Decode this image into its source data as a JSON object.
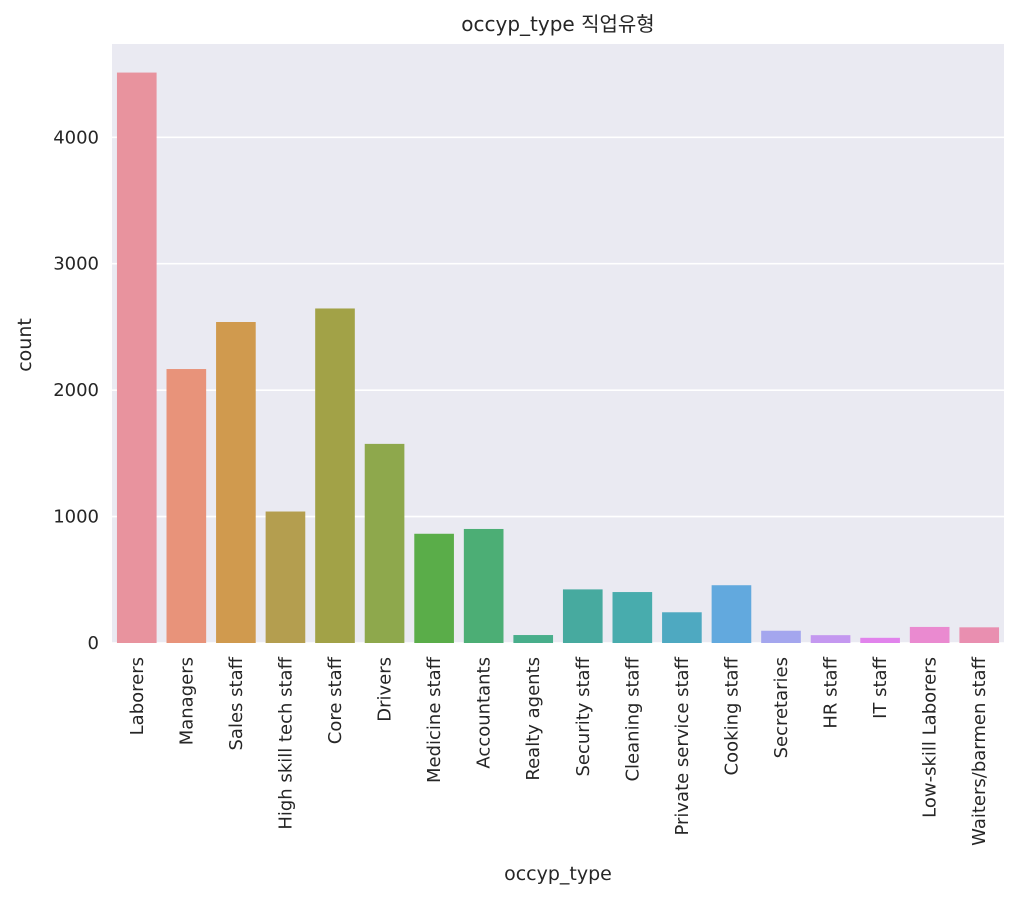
{
  "chart_data": {
    "type": "bar",
    "title": "occyp_type 직업유형",
    "xlabel": "occyp_type",
    "ylabel": "count",
    "categories": [
      "Laborers",
      "Managers",
      "Sales staff",
      "High skill tech staff",
      "Core staff",
      "Drivers",
      "Medicine staff",
      "Accountants",
      "Realty agents",
      "Security staff",
      "Cleaning staff",
      "Private service staff",
      "Cooking staff",
      "Secretaries",
      "HR staff",
      "IT staff",
      "Low-skill Laborers",
      "Waiters/barmen staff"
    ],
    "values": [
      4512,
      2167,
      2539,
      1040,
      2646,
      1575,
      864,
      902,
      63,
      424,
      403,
      243,
      457,
      97,
      62,
      41,
      127,
      124
    ],
    "colors": [
      "#e8939e",
      "#e8937a",
      "#d09a4e",
      "#b49e4f",
      "#a2a247",
      "#8ea84c",
      "#5aad49",
      "#4cae75",
      "#48ae8b",
      "#47aa9f",
      "#48acad",
      "#4ea9c1",
      "#62a9de",
      "#a4a6ee",
      "#c498f0",
      "#e183ec",
      "#ea8ad0",
      "#e98fb0"
    ],
    "yticks": [
      0,
      1000,
      2000,
      3000,
      4000
    ],
    "ylim": [
      0,
      4738
    ],
    "grid": true,
    "background": "#eaeaf2"
  }
}
